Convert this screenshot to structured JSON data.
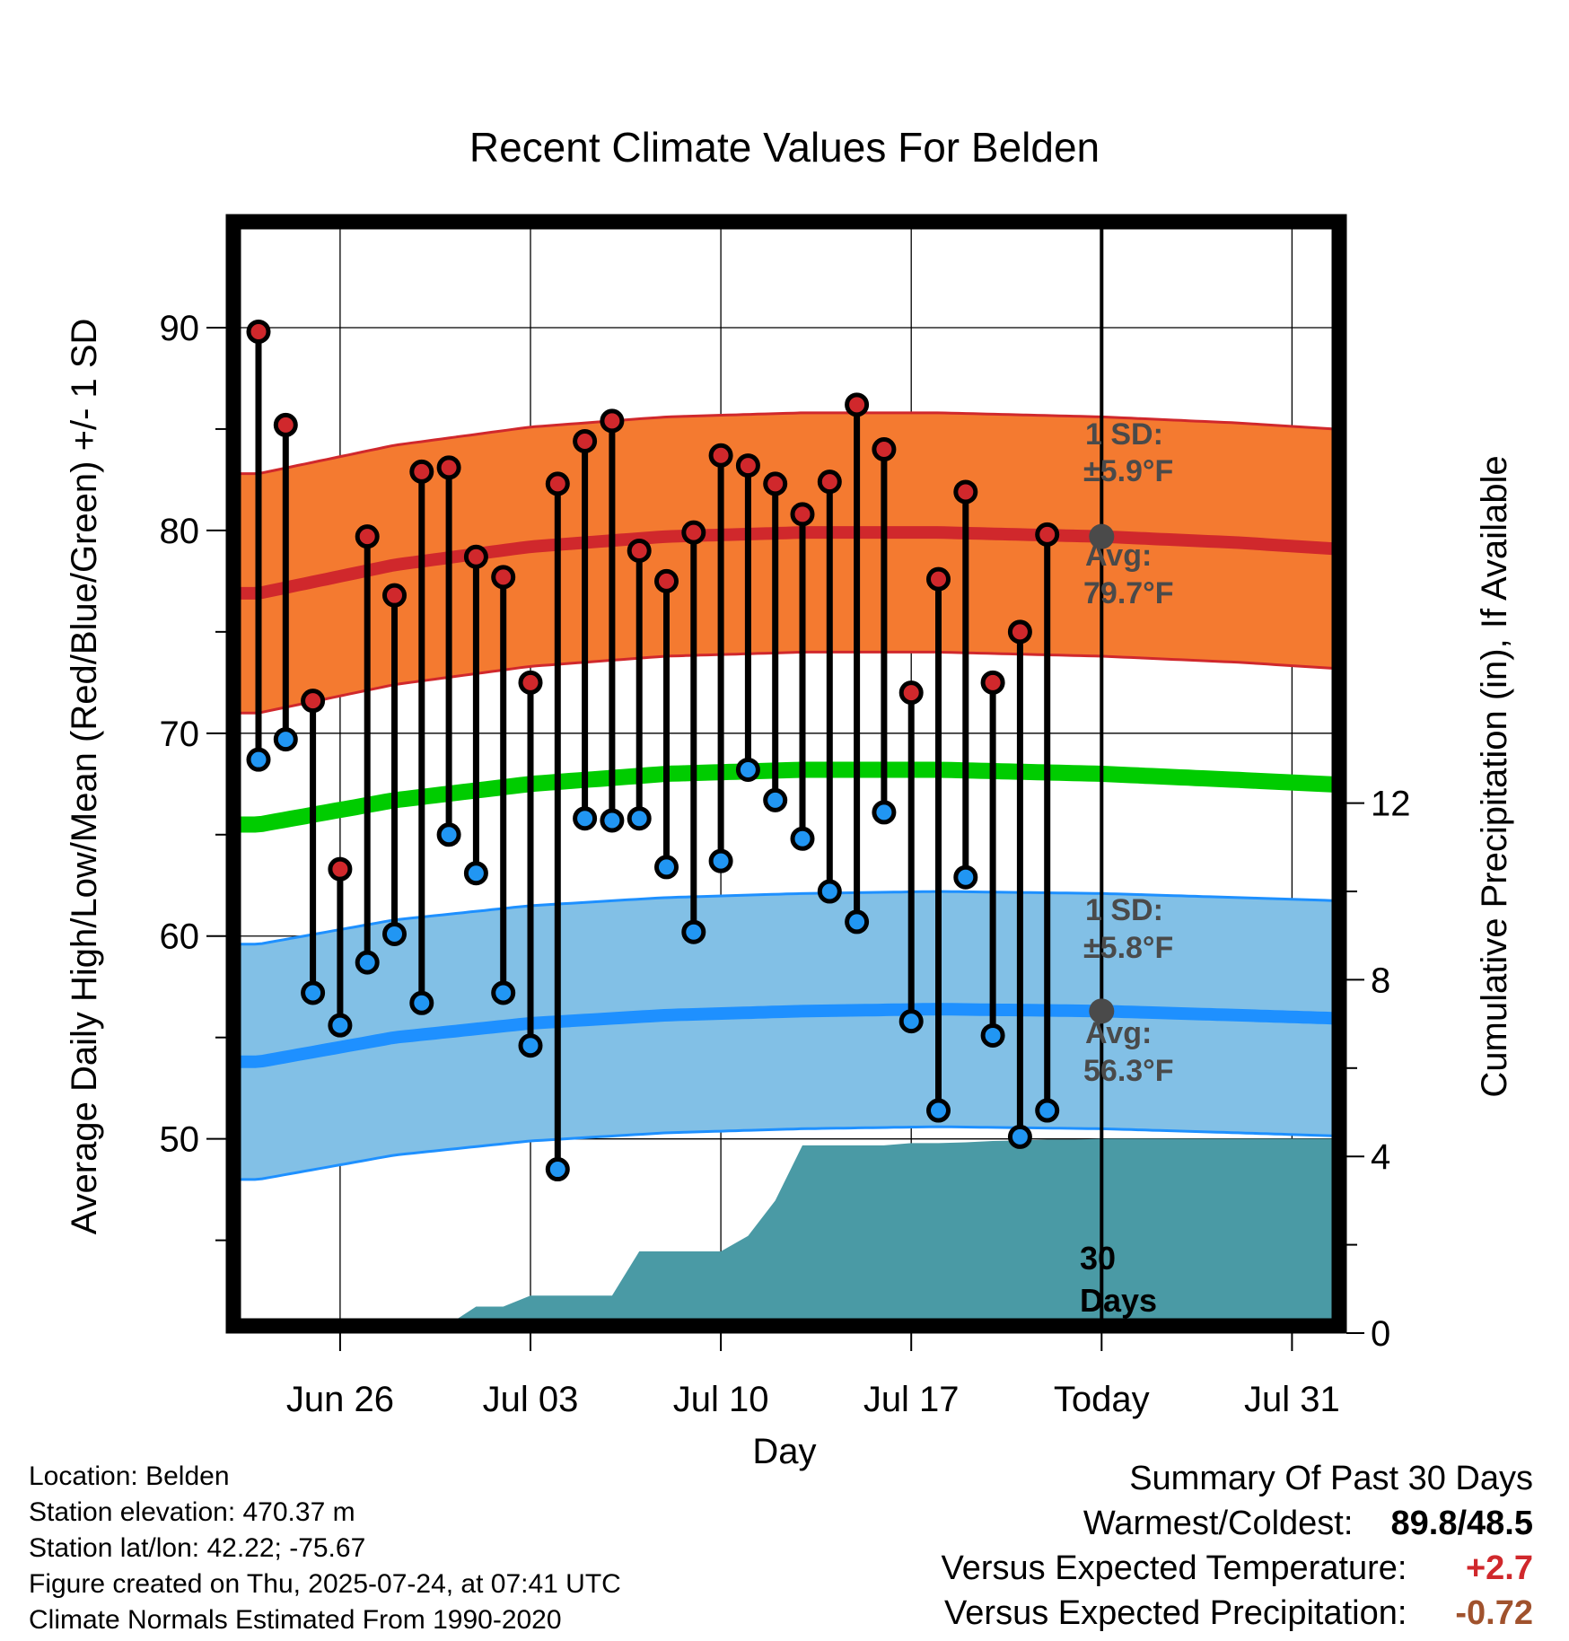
{
  "chart_data": {
    "type": "line",
    "title": "Recent Climate Values For Belden",
    "xlabel": "Day",
    "ylabel": "Average Daily High/Low/Mean (Red/Blue/Green) +/- 1 SD",
    "y2label": "Cumulative Precipitation (in), If Available",
    "ylim": [
      41,
      95
    ],
    "y2lim": [
      0,
      27.4
    ],
    "yticks": [
      50,
      60,
      70,
      80,
      90
    ],
    "y2ticks": [
      0,
      4,
      8,
      12
    ],
    "x_start": "Jun 23",
    "x_end": "Aug 03",
    "xticks": [
      {
        "day": 3,
        "label": "Jun 26"
      },
      {
        "day": 10,
        "label": "Jul 03"
      },
      {
        "day": 17,
        "label": "Jul 10"
      },
      {
        "day": 24,
        "label": "Jul 17"
      },
      {
        "day": 31,
        "label": "Today"
      },
      {
        "day": 38,
        "label": "Jul 31"
      }
    ],
    "grid": true,
    "normals": {
      "days": [
        0,
        5,
        10,
        15,
        20,
        25,
        31,
        36,
        40.7
      ],
      "high_avg": [
        76.9,
        78.3,
        79.2,
        79.7,
        79.9,
        79.9,
        79.7,
        79.4,
        79.0
      ],
      "high_sd": 5.9,
      "mean_avg": [
        65.5,
        66.7,
        67.5,
        68.0,
        68.2,
        68.2,
        68.0,
        67.7,
        67.4
      ],
      "low_avg": [
        53.8,
        55.0,
        55.7,
        56.1,
        56.3,
        56.4,
        56.3,
        56.1,
        55.9
      ],
      "low_sd": 5.8
    },
    "series": [
      {
        "name": "High",
        "color": "#d0282c",
        "values": [
          89.8,
          85.2,
          71.6,
          63.3,
          79.7,
          76.8,
          82.9,
          83.1,
          78.7,
          77.7,
          72.5,
          82.3,
          84.4,
          85.4,
          79.0,
          77.5,
          79.9,
          83.7,
          83.2,
          82.3,
          80.8,
          82.4,
          86.2,
          84.0,
          72.0,
          77.6,
          81.9,
          72.5,
          75.0,
          79.8
        ]
      },
      {
        "name": "Low",
        "color": "#2196f3",
        "values": [
          68.7,
          69.7,
          57.2,
          55.6,
          58.7,
          60.1,
          56.7,
          65.0,
          63.1,
          57.2,
          54.6,
          48.5,
          65.8,
          65.7,
          65.8,
          63.4,
          60.2,
          63.7,
          68.2,
          66.7,
          64.8,
          62.2,
          60.7,
          66.1,
          55.8,
          51.4,
          62.9,
          55.1,
          50.1,
          51.4
        ]
      }
    ],
    "precip": {
      "days": [
        0,
        6,
        7,
        8,
        9,
        10,
        11,
        12,
        13,
        14,
        15,
        16,
        17,
        18,
        19,
        20,
        21,
        22,
        23,
        24,
        25,
        26,
        27,
        28,
        29,
        30,
        31,
        40.7
      ],
      "values": [
        0,
        0,
        0.2,
        0.6,
        0.6,
        0.85,
        0.85,
        0.85,
        0.85,
        1.85,
        1.85,
        1.85,
        1.85,
        2.2,
        3.0,
        4.25,
        4.25,
        4.25,
        4.25,
        4.3,
        4.3,
        4.32,
        4.35,
        4.36,
        4.38,
        4.38,
        4.4,
        4.4
      ]
    },
    "annotations": {
      "high_sd_label": [
        "1 SD:",
        "±5.9°F"
      ],
      "high_avg_label": [
        "Avg:",
        "79.7°F"
      ],
      "high_avg_value": 79.7,
      "low_sd_label": [
        "1 SD:",
        "±5.8°F"
      ],
      "low_avg_label": [
        "Avg:",
        "56.3°F"
      ],
      "low_avg_value": 56.3,
      "days_label": [
        "30",
        "Days"
      ]
    },
    "colors": {
      "high_band": "#f47a30",
      "high_line": "#d0282c",
      "mean_line": "#00cc00",
      "low_band": "#82c0e6",
      "low_line": "#1e90ff",
      "precip_fill": "#4a9aa5",
      "marker_outline": "#000000",
      "today_marker": "#4a4a4a"
    }
  },
  "info": {
    "location": "Location: Belden",
    "elevation": "Station elevation: 470.37 m",
    "latlon": "Station lat/lon: 42.22; -75.67",
    "created": "Figure created on Thu, 2025-07-24, at 07:41 UTC",
    "normals": "Climate Normals Estimated From 1990-2020"
  },
  "summary": {
    "heading": "Summary Of Past 30 Days",
    "warm_cold_label": "Warmest/Coldest:",
    "warm_value": "89.8",
    "slash": "/",
    "cold_value": "48.5",
    "temp_label": "Versus Expected Temperature:",
    "temp_value": "+2.7",
    "temp_color": "#d0282c",
    "precip_label": "Versus Expected Precipitation:",
    "precip_value": "-0.72",
    "precip_color": "#a0522d"
  }
}
